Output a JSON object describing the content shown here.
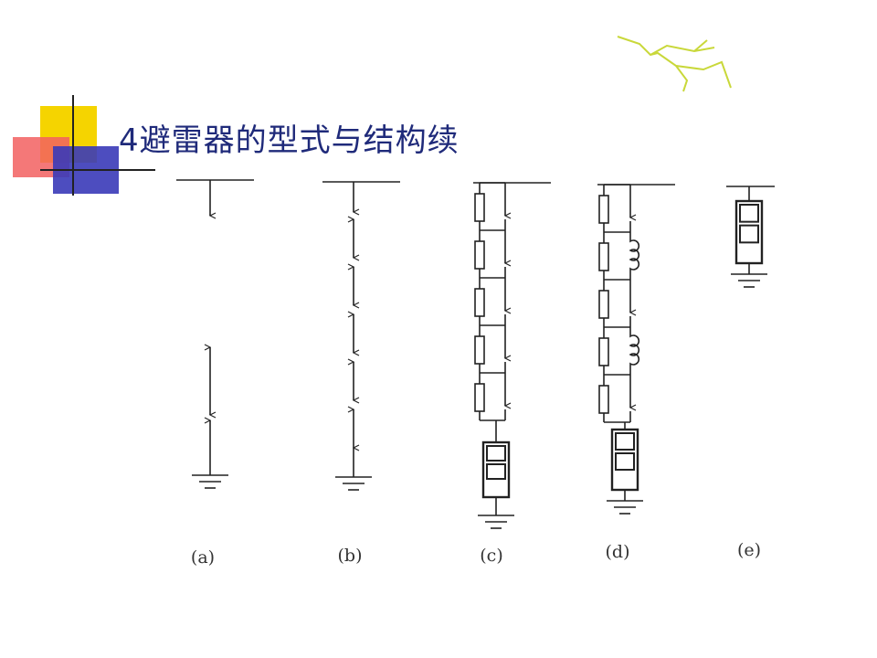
{
  "header": {
    "title": "4避雷器的型式与结构续"
  },
  "labels": [
    "(a)",
    "(b)",
    "(c)",
    "(d)",
    "(e)"
  ]
}
